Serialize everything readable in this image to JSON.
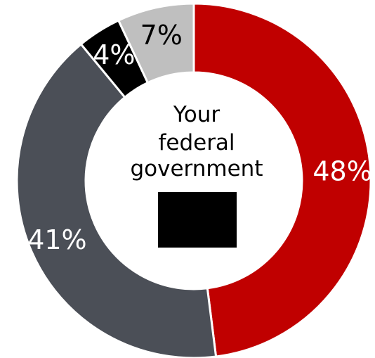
{
  "chart_data": {
    "type": "pie",
    "donut": true,
    "categories": [
      "",
      "",
      "",
      ""
    ],
    "values": [
      48,
      41,
      4,
      7
    ],
    "labels": [
      "48%",
      "41%",
      "4%",
      "7%"
    ],
    "colors": [
      "#c00000",
      "#4b4f57",
      "#000000",
      "#bfbfbf"
    ],
    "label_colors": [
      "#ffffff",
      "#ffffff",
      "#ffffff",
      "#000000"
    ],
    "center_text": [
      "Your",
      "federal",
      "government"
    ],
    "center_box_color": "#000000",
    "start": "12 o'clock",
    "direction": "clockwise"
  }
}
